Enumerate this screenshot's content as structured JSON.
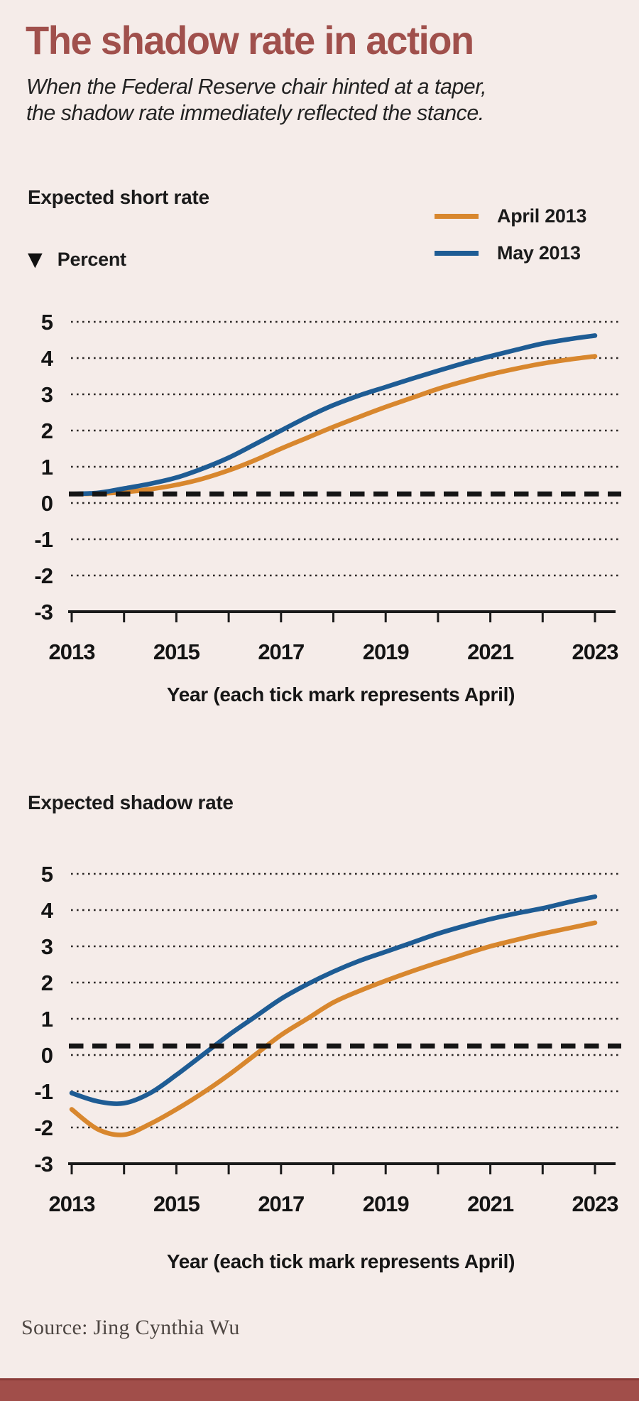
{
  "page": {
    "title": "The shadow rate in action",
    "subtitle_line1": "When the Federal Reserve chair hinted at a taper,",
    "subtitle_line2": "the shadow rate immediately reflected the stance.",
    "source": "Source: Jing Cynthia Wu"
  },
  "axis_marker": {
    "symbol": "▼",
    "label": "Percent"
  },
  "legend": {
    "items": [
      {
        "label": "April 2013",
        "color": "#d8872e"
      },
      {
        "label": "May 2013",
        "color": "#1e5c94"
      }
    ]
  },
  "colors": {
    "background": "#f5ece9",
    "accent_title": "#a0504c",
    "footer_bar": "#a14e4a",
    "footer_bar_edge": "#8a3b38",
    "april_line": "#d8872e",
    "may_line": "#1e5c94",
    "dashed_reference": "#151515",
    "gridline": "#2b2725",
    "text": "#1b1b1b"
  },
  "chart_data": [
    {
      "type": "line",
      "title": "Expected short rate",
      "xlabel": "Year (each tick mark represents April)",
      "ylabel": "Percent",
      "ylim": [
        -3,
        5
      ],
      "yticks": [
        5,
        4,
        3,
        2,
        1,
        0,
        -1,
        -2,
        -3
      ],
      "xticks": [
        2013,
        2014,
        2015,
        2016,
        2017,
        2018,
        2019,
        2020,
        2021,
        2022,
        2023
      ],
      "xtick_labels": [
        "2013",
        "2015",
        "2017",
        "2019",
        "2021",
        "2023"
      ],
      "grid": "dotted-horizontal",
      "legend_position": "top-right",
      "x": [
        2013,
        2013.5,
        2014,
        2014.5,
        2015,
        2015.5,
        2016,
        2016.5,
        2017,
        2017.5,
        2018,
        2018.5,
        2019,
        2019.5,
        2020,
        2020.5,
        2021,
        2021.5,
        2022,
        2022.5,
        2023
      ],
      "series": [
        {
          "name": "April 2013",
          "color": "#d8872e",
          "values": [
            0.25,
            0.26,
            0.3,
            0.38,
            0.5,
            0.67,
            0.9,
            1.18,
            1.5,
            1.8,
            2.1,
            2.38,
            2.65,
            2.9,
            3.15,
            3.36,
            3.55,
            3.71,
            3.85,
            3.96,
            4.05
          ]
        },
        {
          "name": "May 2013",
          "color": "#1e5c94",
          "values": [
            0.25,
            0.28,
            0.4,
            0.53,
            0.7,
            0.95,
            1.25,
            1.62,
            2.0,
            2.37,
            2.7,
            2.97,
            3.2,
            3.43,
            3.65,
            3.86,
            4.05,
            4.23,
            4.4,
            4.52,
            4.62
          ]
        }
      ],
      "reference_line": {
        "value": 0.25,
        "style": "dashed",
        "color": "#151515"
      }
    },
    {
      "type": "line",
      "title": "Expected shadow rate",
      "xlabel": "Year (each tick mark represents April)",
      "ylabel": "Percent",
      "ylim": [
        -3,
        5
      ],
      "yticks": [
        5,
        4,
        3,
        2,
        1,
        0,
        -1,
        -2,
        -3
      ],
      "xticks": [
        2013,
        2014,
        2015,
        2016,
        2017,
        2018,
        2019,
        2020,
        2021,
        2022,
        2023
      ],
      "xtick_labels": [
        "2013",
        "2015",
        "2017",
        "2019",
        "2021",
        "2023"
      ],
      "grid": "dotted-horizontal",
      "legend_position": "shared-top",
      "x": [
        2013,
        2013.5,
        2014,
        2014.5,
        2015,
        2015.5,
        2016,
        2016.5,
        2017,
        2017.5,
        2018,
        2018.5,
        2019,
        2019.5,
        2020,
        2020.5,
        2021,
        2021.5,
        2022,
        2022.5,
        2023
      ],
      "series": [
        {
          "name": "April 2013",
          "color": "#d8872e",
          "values": [
            -1.5,
            -2.05,
            -2.2,
            -1.9,
            -1.5,
            -1.05,
            -0.55,
            0.0,
            0.55,
            1.0,
            1.45,
            1.77,
            2.05,
            2.31,
            2.55,
            2.78,
            3.0,
            3.18,
            3.35,
            3.5,
            3.65
          ]
        },
        {
          "name": "May 2013",
          "color": "#1e5c94",
          "values": [
            -1.05,
            -1.28,
            -1.33,
            -1.05,
            -0.55,
            0.0,
            0.55,
            1.05,
            1.55,
            1.95,
            2.3,
            2.6,
            2.85,
            3.1,
            3.35,
            3.56,
            3.75,
            3.91,
            4.05,
            4.22,
            4.37
          ]
        }
      ],
      "reference_line": {
        "value": 0.25,
        "style": "dashed",
        "color": "#151515"
      }
    }
  ]
}
